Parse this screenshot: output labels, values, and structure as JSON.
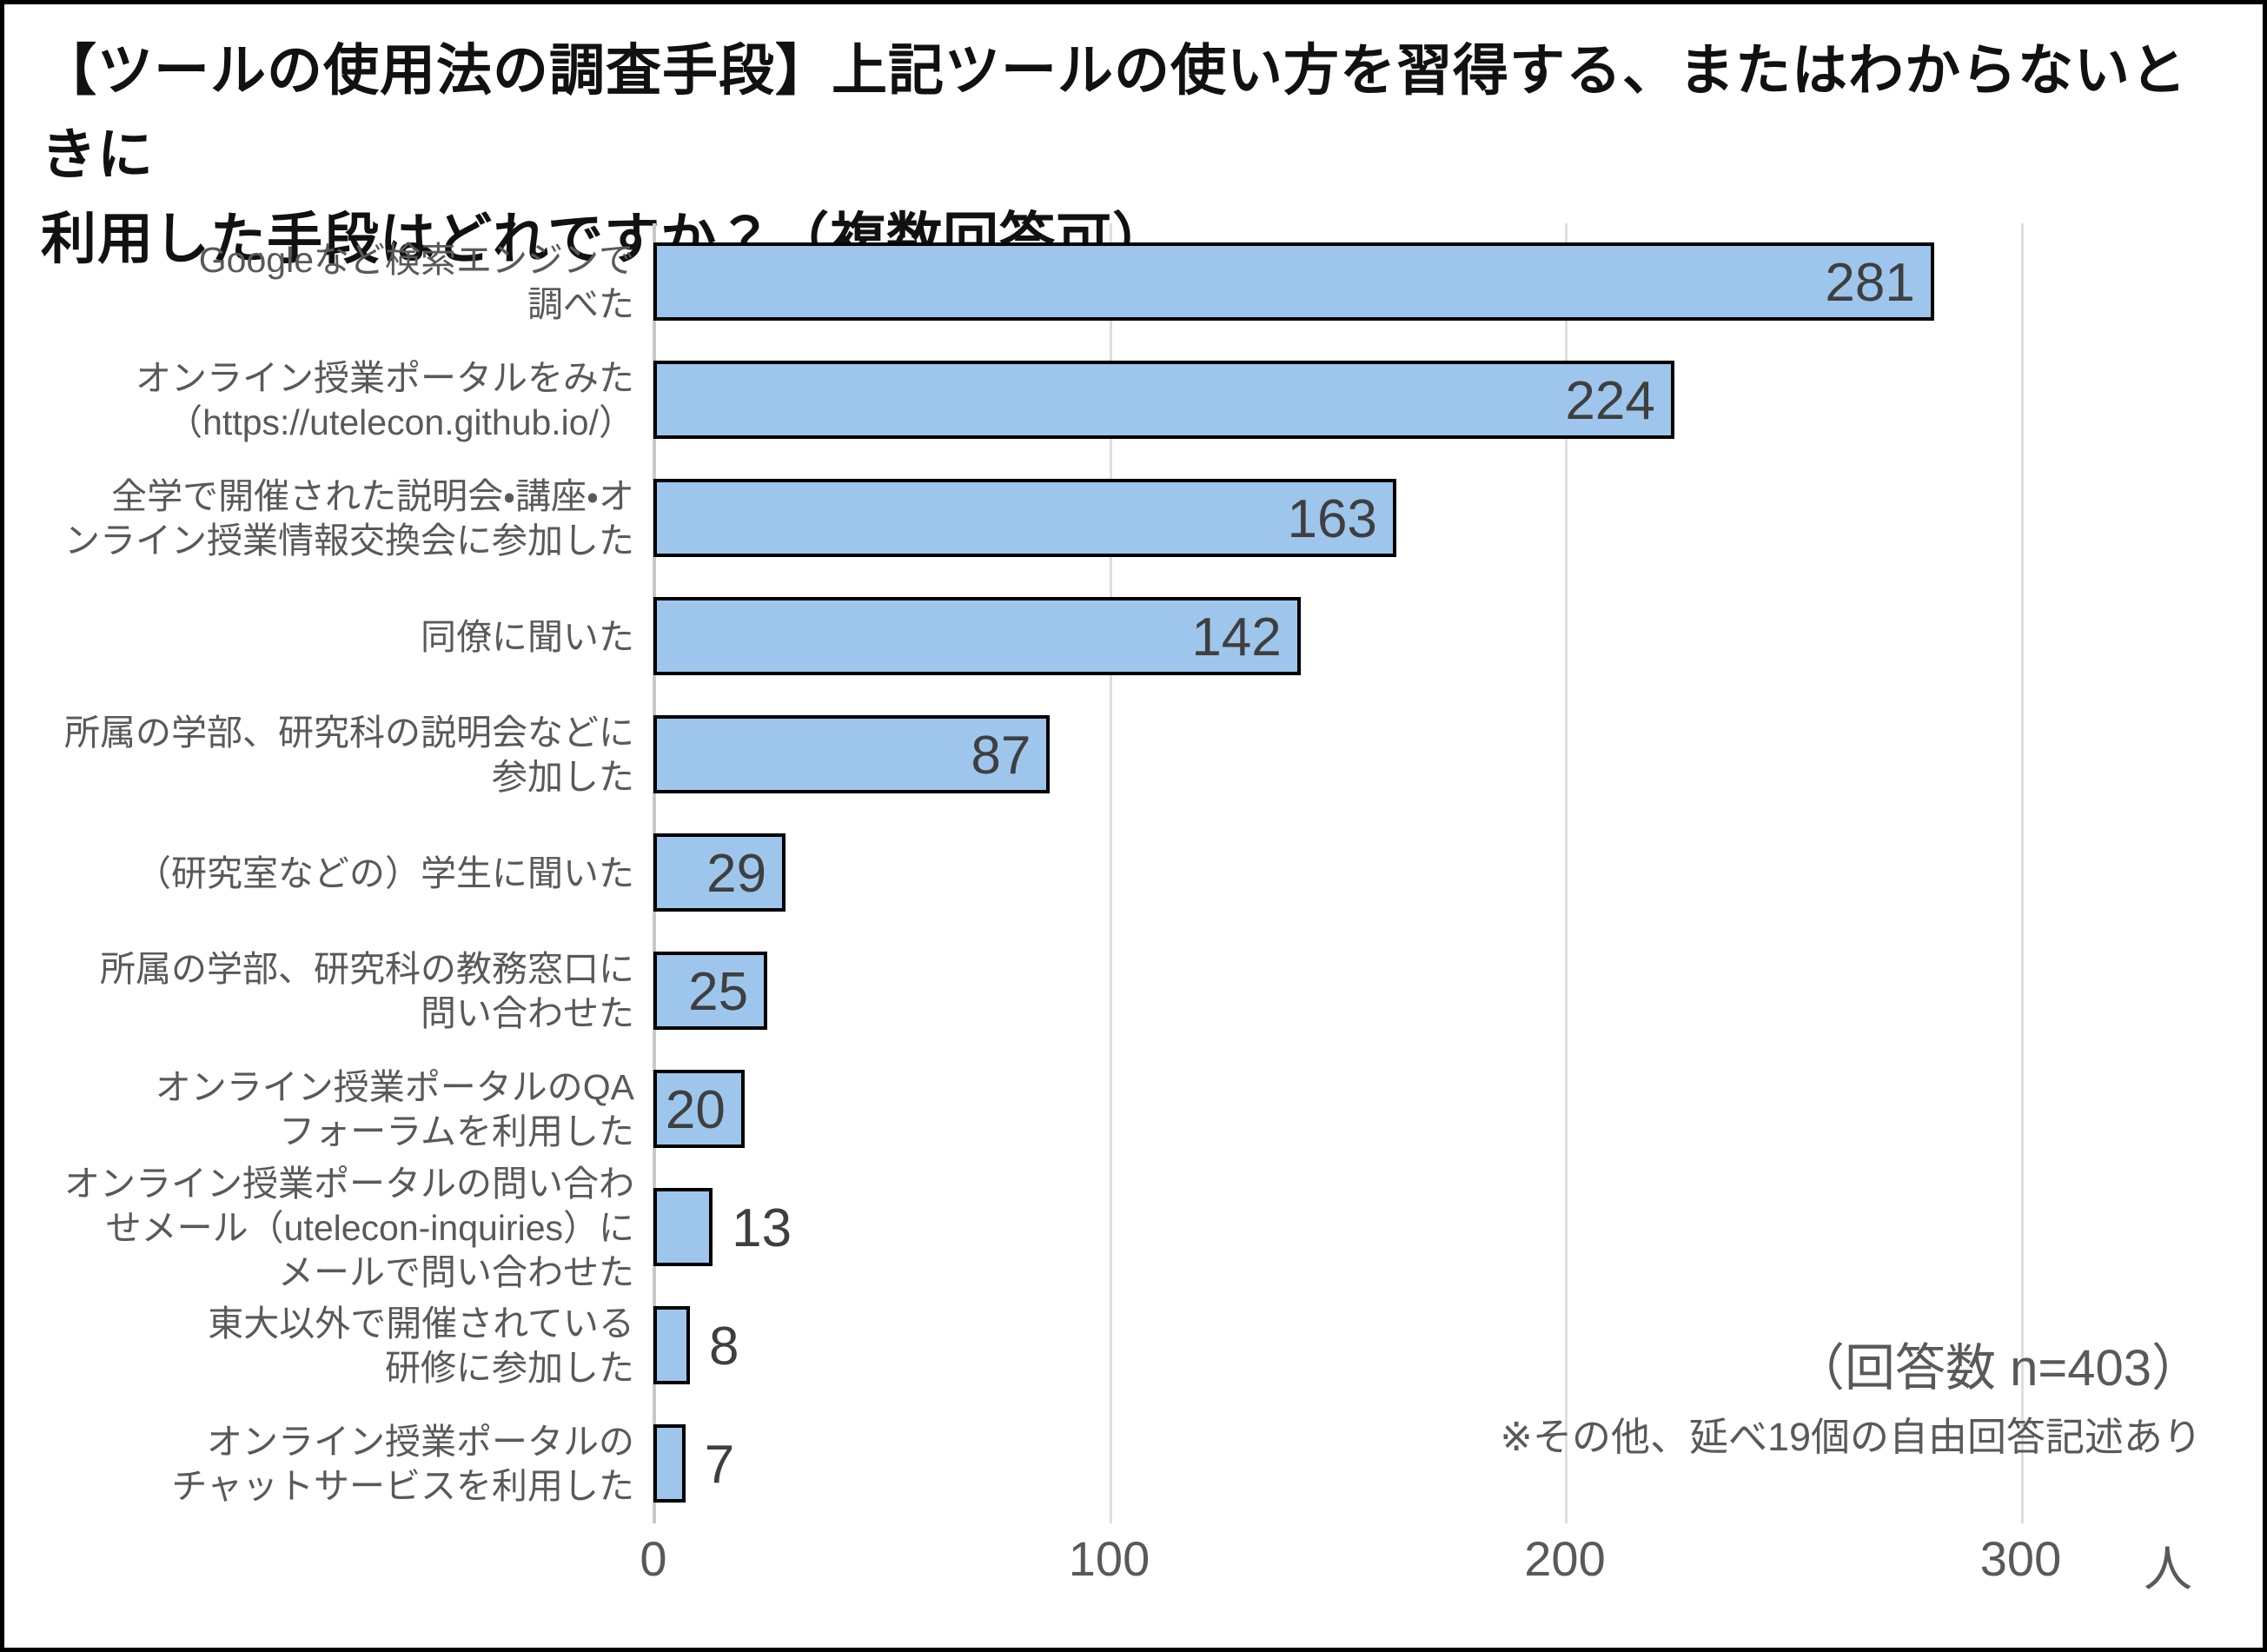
{
  "title": {
    "lines": [
      "【ツールの使用法の調査手段】上記ツールの使い方を習得する、またはわからないときに",
      "利用した手段はどれですか？（複数回答可）。"
    ]
  },
  "chart_data": {
    "type": "bar",
    "orientation": "horizontal",
    "title": "【ツールの使用法の調査手段】上記ツールの使い方を習得する、またはわからないときに利用した手段はどれですか？（複数回答可）。",
    "categories": [
      "Googleなど検索エンジンで調べた",
      "オンライン授業ポータルをみた（https://utelecon.github.io/）",
      "全学で開催された説明会・講座・オンライン授業情報交換会に参加した",
      "同僚に聞いた",
      "所属の学部、研究科の説明会などに参加した",
      "（研究室などの）学生に聞いた",
      "所属の学部、研究科の教務窓口に問い合わせた",
      "オンライン授業ポータルのQAフォーラムを利用した",
      "オンライン授業ポータルの問い合わせメール（utelecon-inquiries）にメールで問い合わせた",
      "東大以外で開催されている研修に参加した",
      "オンライン授業ポータルのチャットサービスを利用した"
    ],
    "category_display_lines": [
      [
        "Googleなど検索エンジンで",
        "調べた"
      ],
      [
        "オンライン授業ポータルをみた",
        "（https://utelecon.github.io/）"
      ],
      [
        "全学で開催された説明会・講座・オ",
        "ンライン授業情報交換会に参加した"
      ],
      [
        "同僚に聞いた"
      ],
      [
        "所属の学部、研究科の説明会などに",
        "参加した"
      ],
      [
        "（研究室などの）学生に聞いた"
      ],
      [
        "所属の学部、研究科の教務窓口に",
        "問い合わせた"
      ],
      [
        "オンライン授業ポータルのQA",
        "フォーラムを利用した"
      ],
      [
        "オンライン授業ポータルの問い合わ",
        "せメール（utelecon-inquiries）に",
        "メールで問い合わせた"
      ],
      [
        "東大以外で開催されている",
        "研修に参加した"
      ],
      [
        "オンライン授業ポータルの",
        "チャットサービスを利用した"
      ]
    ],
    "values": [
      281,
      224,
      163,
      142,
      87,
      29,
      25,
      20,
      13,
      8,
      7
    ],
    "x_ticks": [
      0,
      100,
      200,
      300
    ],
    "x_tick_labels": [
      "0",
      "100",
      "200",
      "300"
    ],
    "xlabel_unit": "人",
    "xlim": [
      0,
      343
    ],
    "grid": "vertical-gridlines",
    "legend": "none",
    "bar_fill": "#9EC6EC",
    "bar_border": "#000000",
    "value_label_color": "#3F3F3F",
    "inside_label_min_value": 20,
    "annotations": [
      "（回答数 n=403）",
      "※その他、延べ19個の自由回答記述あり"
    ]
  }
}
